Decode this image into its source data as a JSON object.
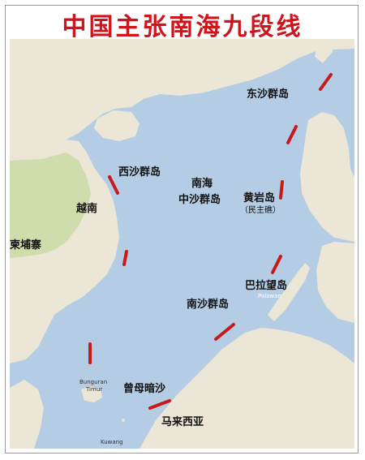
{
  "title": "中国主张南海九段线",
  "colors": {
    "sea": "#b4cce4",
    "land": "#ebe6d5",
    "vegetation": "#cfdcab",
    "dash": "#c81a1a",
    "title": "#d0141c"
  },
  "labels": {
    "dongsha": "东沙群岛",
    "xisha": "西沙群岛",
    "nanhai": "南海",
    "zhongsha": "中沙群岛",
    "huangyan": "黄岩岛",
    "huangyan_sub": "（民主礁）",
    "yuenan": "越南",
    "jianpuzhai": "柬埔寨",
    "balawang": "巴拉望岛",
    "nansha": "南沙群岛",
    "zengmuansha": "曾母暗沙",
    "malaixiya": "马来西亚"
  },
  "basemap_labels": {
    "palawan": "Palawan",
    "bunguran": "Bunguran",
    "timur": "Timur",
    "kuwang": "Kuwang"
  },
  "nine_dash_count": 9
}
